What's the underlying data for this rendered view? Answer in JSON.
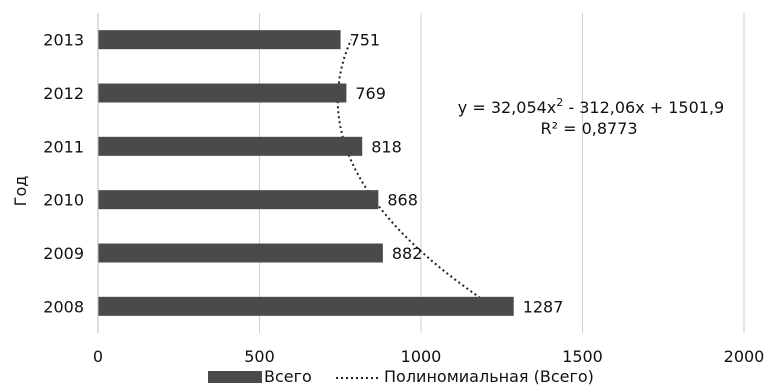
{
  "chart_data": {
    "type": "bar",
    "orientation": "horizontal",
    "categories": [
      "2008",
      "2009",
      "2010",
      "2011",
      "2012",
      "2013"
    ],
    "series": [
      {
        "name": "Всего",
        "values": [
          1287,
          882,
          868,
          818,
          769,
          751
        ],
        "color": "#4a4a4a"
      }
    ],
    "trendline": {
      "name": "Полиномиальная (Всего)",
      "type": "polynomial",
      "order": 2,
      "coefficients": [
        32.054,
        -312.06,
        1501.9
      ],
      "equation_prefix": "y = 32,054x",
      "equation_superscript": "2",
      "equation_suffix": " - 312,06x + 1501,9",
      "r_squared_label": "R² = 0,8773",
      "style": "dotted",
      "color": "#222222"
    },
    "x_ticks": [
      "0",
      "500",
      "1000",
      "1500",
      "2000"
    ],
    "xlim": [
      0,
      2000
    ],
    "xlabel": "",
    "ylabel": "Год",
    "title": "",
    "grid": true,
    "legend_position": "bottom",
    "data_labels": [
      "1287",
      "882",
      "868",
      "818",
      "769",
      "751"
    ]
  }
}
